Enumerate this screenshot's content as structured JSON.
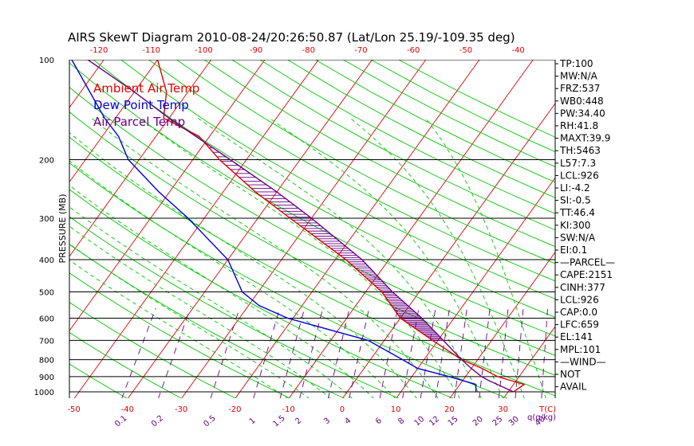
{
  "chart_data": {
    "type": "line",
    "title": "AIRS SkewT Diagram 2010-08-24/20:26:50.87 (Lat/Lon 25.19/-109.35 deg)",
    "ylabel": "PRESSURE (MB)",
    "xlabel": "T(C)",
    "mixing_ratio_unit": "q(g/kg)",
    "pressure_ticks": [
      100,
      200,
      300,
      400,
      500,
      600,
      700,
      800,
      900,
      1000
    ],
    "bottom_temp_ticks": [
      -50,
      -40,
      -30,
      -20,
      -10,
      0,
      10,
      20,
      30
    ],
    "top_temp_ticks": [
      -120,
      -110,
      -100,
      -90,
      -80,
      -70,
      -60,
      -50,
      -40
    ],
    "mixing_ratio_labels": [
      "0.1",
      "0.2",
      "0.5",
      "1",
      "1.5",
      "2",
      "3",
      "4",
      "6",
      "8",
      "10",
      "12",
      "15",
      "20",
      "25",
      "30",
      "40"
    ],
    "legend": [
      {
        "label": "Ambient Air Temp",
        "color": "#e00000"
      },
      {
        "label": "Dew Point Temp",
        "color": "#0000d8"
      },
      {
        "label": "Air Parcel Temp",
        "color": "#6a0088"
      }
    ],
    "series": [
      {
        "name": "Ambient Air Temp",
        "color": "#e00000",
        "points": [
          [
            1000,
            31
          ],
          [
            950,
            32
          ],
          [
            900,
            26
          ],
          [
            850,
            22
          ],
          [
            800,
            17
          ],
          [
            700,
            9
          ],
          [
            600,
            0
          ],
          [
            500,
            -7
          ],
          [
            400,
            -18
          ],
          [
            300,
            -34
          ],
          [
            250,
            -44
          ],
          [
            200,
            -55
          ],
          [
            170,
            -62
          ],
          [
            150,
            -71
          ],
          [
            125,
            -74
          ],
          [
            100,
            -80
          ]
        ]
      },
      {
        "name": "Dew Point Temp",
        "color": "#0000d8",
        "points": [
          [
            1000,
            24
          ],
          [
            950,
            23
          ],
          [
            900,
            17
          ],
          [
            850,
            10
          ],
          [
            800,
            6
          ],
          [
            700,
            -3
          ],
          [
            600,
            -21
          ],
          [
            550,
            -28
          ],
          [
            500,
            -33
          ],
          [
            400,
            -40
          ],
          [
            300,
            -53
          ],
          [
            250,
            -62
          ],
          [
            200,
            -72
          ],
          [
            170,
            -77
          ],
          [
            150,
            -82
          ],
          [
            100,
            -96
          ]
        ]
      },
      {
        "name": "Air Parcel Temp",
        "color": "#6a0088",
        "points": [
          [
            1000,
            31
          ],
          [
            926,
            25
          ],
          [
            900,
            23
          ],
          [
            850,
            20
          ],
          [
            800,
            17
          ],
          [
            700,
            11
          ],
          [
            600,
            4
          ],
          [
            500,
            -5
          ],
          [
            400,
            -15
          ],
          [
            300,
            -30
          ],
          [
            250,
            -40
          ],
          [
            200,
            -53
          ],
          [
            150,
            -70
          ],
          [
            125,
            -80
          ],
          [
            100,
            -93
          ]
        ]
      }
    ]
  },
  "indices": [
    "TP:100",
    "MW:N/A",
    "FRZ:537",
    "WB0:448",
    "PW:34.40",
    "RH:41.8",
    "MAXT:39.9",
    "TH:5463",
    "L57:7.3",
    "LCL:926",
    "LI:-4.2",
    "SI:-0.5",
    "TT:46.4",
    "KI:300",
    "SW:N/A",
    "EI:0.1",
    "—PARCEL—",
    "CAPE:2151",
    "CINH:377",
    "LCL:926",
    "CAP:0.0",
    "LFC:659",
    "EL:141",
    "MPL:101",
    "—WIND—",
    "NOT",
    "AVAIL"
  ],
  "colors": {
    "isotherm": "#e00000",
    "dry_adiabat": "#00c800",
    "moist_adiabat": "#00c800",
    "mixing_ratio": "#6a0088",
    "isobar": "#000000"
  }
}
